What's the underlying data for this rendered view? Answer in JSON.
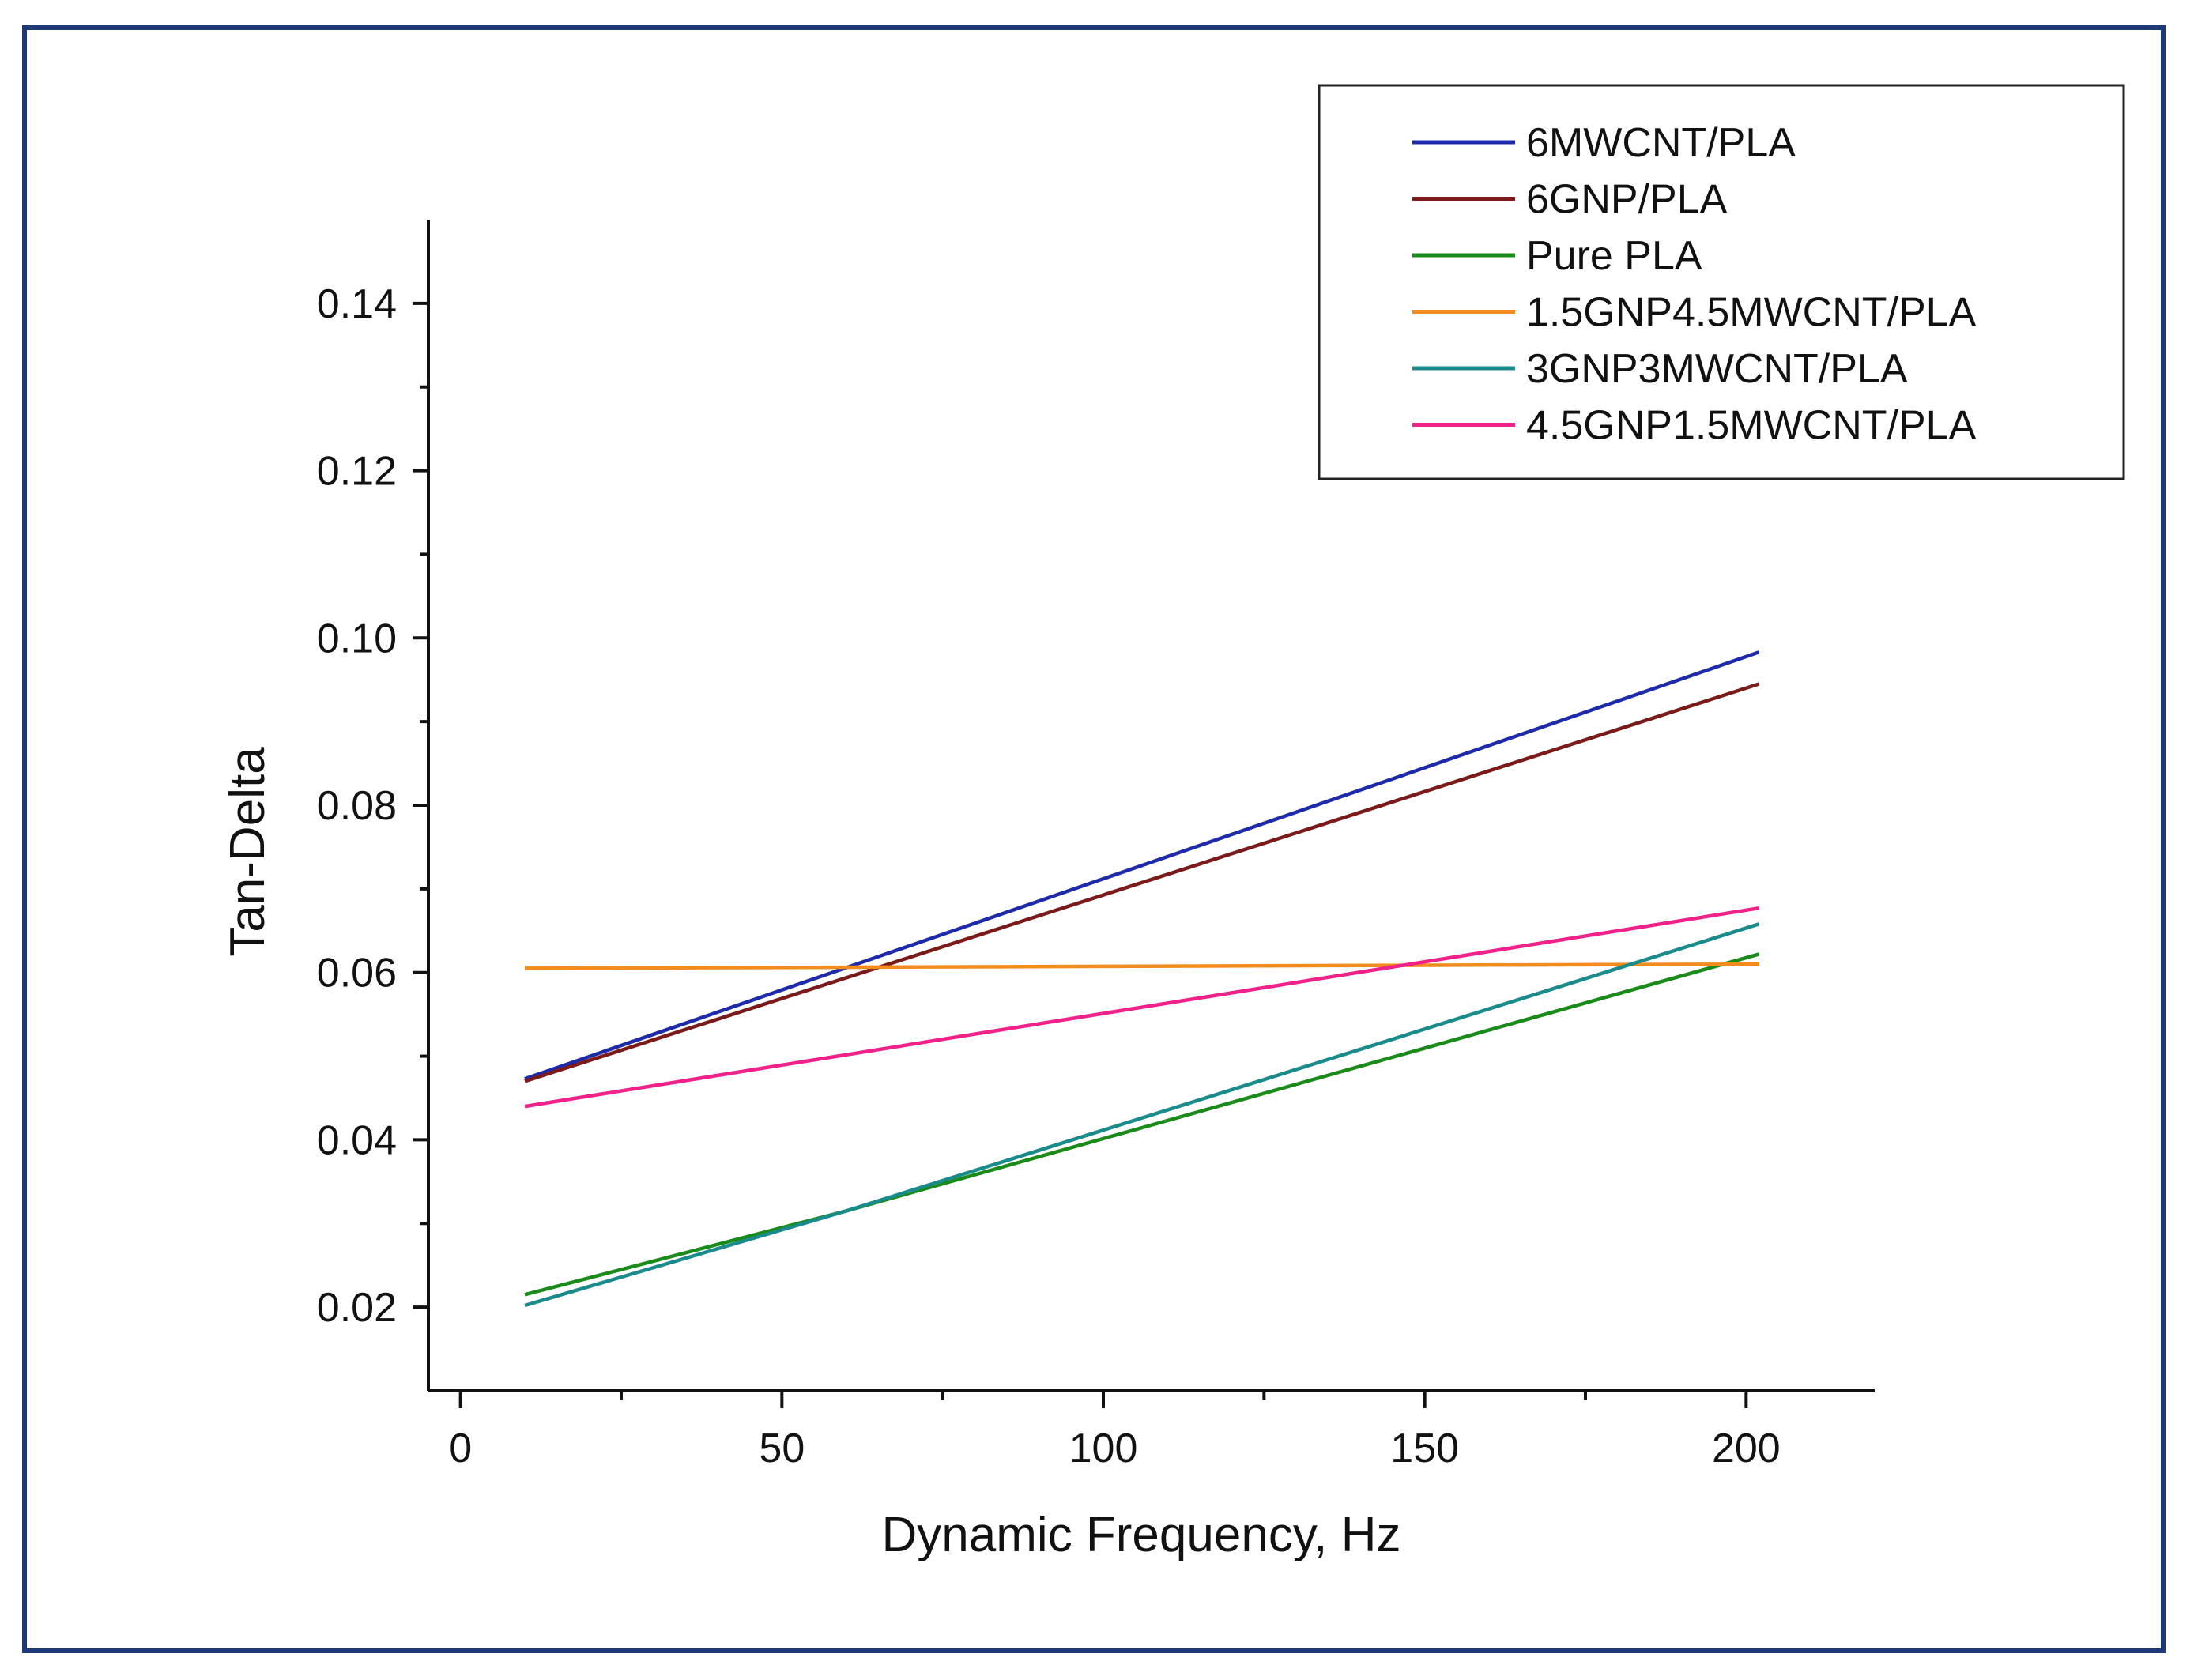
{
  "chart_data": {
    "type": "line",
    "title": "",
    "xlabel": "Dynamic Frequency, Hz",
    "ylabel": "Tan-Delta",
    "xlim": [
      -5,
      220
    ],
    "ylim": [
      0.01,
      0.15
    ],
    "x_ticks": [
      0,
      50,
      100,
      150,
      200
    ],
    "x_tick_labels": [
      "0",
      "50",
      "100",
      "150",
      "200"
    ],
    "y_ticks": [
      0.02,
      0.04,
      0.06,
      0.08,
      0.1,
      0.12,
      0.14
    ],
    "y_tick_labels": [
      "0.02",
      "0.04",
      "0.06",
      "0.08",
      "0.10",
      "0.12",
      "0.14"
    ],
    "grid": false,
    "legend_position": "top-right",
    "series": [
      {
        "name": "6MWCNT/PLA",
        "color": "#1f2aa8",
        "x": [
          10,
          202
        ],
        "y": [
          0.0473,
          0.0983
        ]
      },
      {
        "name": "6GNP/PLA",
        "color": "#7a1a1a",
        "x": [
          10,
          202
        ],
        "y": [
          0.047,
          0.0945
        ]
      },
      {
        "name": "Pure PLA",
        "color": "#1a8a1a",
        "x": [
          10,
          60,
          202
        ],
        "y": [
          0.0215,
          0.0315,
          0.0622
        ]
      },
      {
        "name": "1.5GNP4.5MWCNT/PLA",
        "color": "#f28c1e",
        "x": [
          10,
          202
        ],
        "y": [
          0.0605,
          0.061
        ]
      },
      {
        "name": "3GNP3MWCNT/PLA",
        "color": "#1a8a8a",
        "x": [
          10,
          60,
          202
        ],
        "y": [
          0.0202,
          0.0315,
          0.0658
        ]
      },
      {
        "name": "4.5GNP1.5MWCNT/PLA",
        "color": "#f0228a",
        "x": [
          10,
          202
        ],
        "y": [
          0.044,
          0.0677
        ]
      }
    ]
  }
}
